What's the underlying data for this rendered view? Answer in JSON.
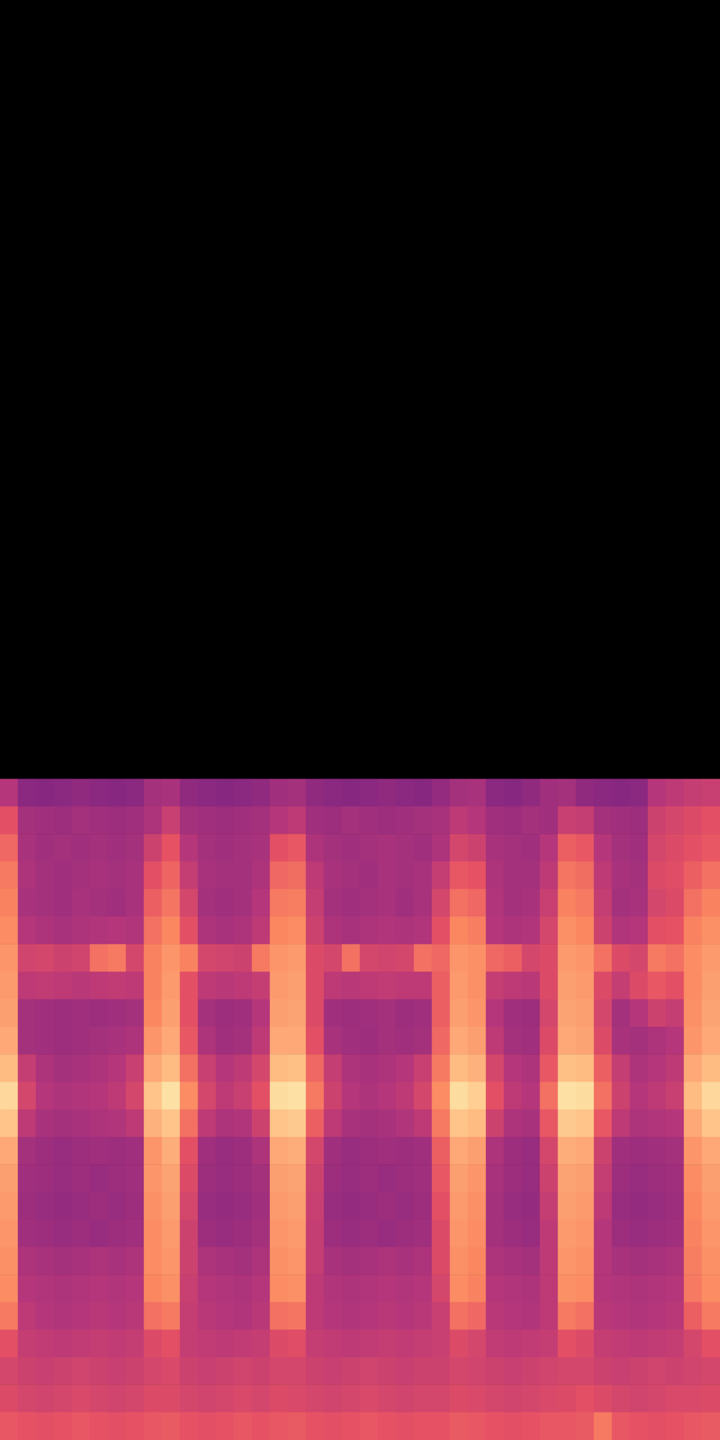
{
  "chart_data": {
    "type": "heatmap",
    "tick_labels": false,
    "zlim": [
      0,
      100
    ],
    "cells": [
      [
        50,
        40,
        39,
        40,
        41,
        40,
        39,
        40,
        46,
        47,
        41,
        40,
        39,
        40,
        41,
        45,
        46,
        41,
        40,
        39,
        40,
        41,
        40,
        39,
        42,
        46,
        47,
        40,
        39,
        41,
        45,
        46,
        41,
        40,
        39,
        40,
        50,
        52,
        54,
        55
      ],
      [
        62,
        46,
        45,
        44,
        46,
        45,
        44,
        45,
        48,
        55,
        46,
        45,
        44,
        45,
        46,
        50,
        52,
        45,
        44,
        46,
        45,
        44,
        45,
        46,
        47,
        52,
        50,
        45,
        44,
        46,
        45,
        55,
        54,
        46,
        45,
        44,
        56,
        58,
        60,
        62
      ],
      [
        68,
        47,
        45,
        46,
        45,
        46,
        45,
        46,
        56,
        63,
        50,
        46,
        45,
        46,
        47,
        62,
        64,
        48,
        46,
        45,
        46,
        47,
        46,
        45,
        48,
        58,
        56,
        47,
        46,
        45,
        50,
        66,
        64,
        50,
        46,
        45,
        58,
        60,
        62,
        64
      ],
      [
        72,
        48,
        46,
        45,
        46,
        47,
        46,
        47,
        62,
        67,
        54,
        47,
        46,
        46,
        48,
        68,
        69,
        52,
        47,
        46,
        45,
        47,
        46,
        47,
        54,
        64,
        63,
        48,
        46,
        46,
        52,
        71,
        69,
        52,
        47,
        46,
        60,
        61,
        66,
        70
      ],
      [
        74,
        47,
        46,
        45,
        47,
        46,
        45,
        47,
        66,
        71,
        58,
        46,
        45,
        46,
        50,
        72,
        73,
        54,
        46,
        45,
        46,
        47,
        45,
        47,
        58,
        70,
        68,
        49,
        46,
        47,
        55,
        74,
        72,
        54,
        46,
        47,
        58,
        60,
        70,
        74
      ],
      [
        76,
        50,
        48,
        47,
        48,
        49,
        50,
        49,
        70,
        75,
        62,
        48,
        47,
        48,
        52,
        75,
        76,
        56,
        48,
        47,
        48,
        49,
        48,
        49,
        62,
        75,
        73,
        50,
        48,
        49,
        58,
        77,
        75,
        56,
        49,
        50,
        62,
        63,
        74,
        77
      ],
      [
        78,
        57,
        58,
        56,
        57,
        70,
        72,
        58,
        74,
        78,
        74,
        58,
        57,
        56,
        72,
        78,
        79,
        60,
        58,
        70,
        58,
        57,
        58,
        70,
        68,
        78,
        77,
        68,
        66,
        58,
        60,
        79,
        78,
        70,
        60,
        58,
        72,
        70,
        76,
        79
      ],
      [
        79,
        52,
        53,
        52,
        51,
        52,
        53,
        52,
        74,
        79,
        62,
        52,
        51,
        52,
        54,
        79,
        80,
        60,
        52,
        51,
        52,
        53,
        52,
        52,
        66,
        79,
        77,
        54,
        52,
        51,
        60,
        80,
        79,
        60,
        54,
        60,
        64,
        62,
        76,
        80
      ],
      [
        80,
        46,
        45,
        44,
        45,
        44,
        45,
        46,
        75,
        80,
        62,
        46,
        44,
        45,
        50,
        80,
        81,
        60,
        45,
        44,
        45,
        46,
        44,
        45,
        66,
        80,
        78,
        50,
        45,
        44,
        58,
        81,
        80,
        58,
        46,
        50,
        56,
        54,
        77,
        81
      ],
      [
        82,
        46,
        45,
        44,
        45,
        46,
        47,
        48,
        78,
        82,
        64,
        48,
        45,
        46,
        52,
        82,
        82,
        62,
        47,
        45,
        44,
        46,
        45,
        46,
        68,
        82,
        80,
        52,
        46,
        45,
        60,
        82,
        81,
        60,
        47,
        46,
        48,
        50,
        78,
        82
      ],
      [
        86,
        54,
        48,
        46,
        47,
        48,
        50,
        55,
        82,
        86,
        70,
        55,
        50,
        52,
        58,
        86,
        87,
        68,
        54,
        48,
        47,
        48,
        50,
        55,
        72,
        86,
        84,
        58,
        50,
        48,
        64,
        87,
        86,
        66,
        54,
        48,
        50,
        52,
        82,
        86
      ],
      [
        92,
        58,
        50,
        48,
        49,
        50,
        52,
        58,
        88,
        94,
        76,
        58,
        52,
        55,
        62,
        93,
        94,
        72,
        56,
        50,
        48,
        50,
        52,
        58,
        76,
        93,
        90,
        62,
        52,
        50,
        70,
        94,
        93,
        70,
        56,
        50,
        52,
        55,
        86,
        92
      ],
      [
        88,
        52,
        47,
        46,
        47,
        48,
        49,
        52,
        84,
        88,
        70,
        52,
        48,
        49,
        56,
        88,
        89,
        66,
        52,
        47,
        46,
        47,
        49,
        52,
        72,
        88,
        86,
        56,
        48,
        47,
        64,
        89,
        88,
        64,
        52,
        48,
        49,
        50,
        82,
        88
      ],
      [
        82,
        46,
        44,
        43,
        44,
        45,
        44,
        45,
        78,
        83,
        62,
        45,
        43,
        44,
        48,
        82,
        83,
        58,
        45,
        43,
        44,
        45,
        44,
        45,
        66,
        82,
        80,
        48,
        44,
        43,
        58,
        83,
        82,
        56,
        45,
        44,
        45,
        46,
        78,
        82
      ],
      [
        80,
        45,
        44,
        43,
        44,
        43,
        44,
        45,
        78,
        81,
        60,
        44,
        43,
        44,
        46,
        80,
        81,
        56,
        44,
        43,
        44,
        43,
        44,
        45,
        64,
        80,
        78,
        47,
        44,
        43,
        56,
        81,
        80,
        54,
        44,
        43,
        44,
        45,
        76,
        80
      ],
      [
        79,
        44,
        43,
        42,
        43,
        44,
        43,
        44,
        77,
        80,
        58,
        43,
        42,
        43,
        45,
        79,
        80,
        55,
        43,
        42,
        43,
        44,
        43,
        44,
        62,
        79,
        77,
        46,
        43,
        42,
        54,
        80,
        79,
        52,
        43,
        42,
        43,
        44,
        75,
        79
      ],
      [
        78,
        45,
        44,
        43,
        44,
        43,
        44,
        45,
        76,
        79,
        56,
        44,
        43,
        44,
        46,
        78,
        79,
        54,
        44,
        43,
        44,
        43,
        44,
        45,
        60,
        78,
        76,
        46,
        44,
        43,
        52,
        79,
        78,
        50,
        44,
        43,
        44,
        45,
        74,
        78
      ],
      [
        77,
        48,
        47,
        46,
        47,
        48,
        47,
        48,
        76,
        78,
        56,
        48,
        47,
        46,
        48,
        77,
        78,
        54,
        47,
        46,
        47,
        48,
        47,
        48,
        60,
        77,
        75,
        48,
        47,
        46,
        52,
        78,
        77,
        50,
        47,
        46,
        47,
        48,
        73,
        77
      ],
      [
        76,
        50,
        49,
        48,
        49,
        50,
        49,
        50,
        75,
        77,
        55,
        50,
        49,
        48,
        50,
        76,
        77,
        52,
        49,
        48,
        49,
        50,
        49,
        50,
        58,
        76,
        74,
        50,
        49,
        48,
        52,
        77,
        76,
        50,
        49,
        48,
        49,
        50,
        72,
        76
      ],
      [
        72,
        52,
        50,
        49,
        50,
        51,
        50,
        51,
        70,
        72,
        54,
        51,
        50,
        49,
        51,
        70,
        71,
        52,
        50,
        49,
        50,
        51,
        50,
        51,
        55,
        70,
        68,
        51,
        50,
        49,
        52,
        72,
        70,
        51,
        50,
        49,
        50,
        51,
        66,
        72
      ],
      [
        62,
        54,
        53,
        52,
        53,
        54,
        53,
        54,
        60,
        62,
        54,
        53,
        52,
        53,
        54,
        60,
        61,
        54,
        53,
        52,
        53,
        54,
        53,
        54,
        55,
        60,
        58,
        53,
        52,
        53,
        54,
        62,
        60,
        54,
        53,
        52,
        53,
        54,
        58,
        62
      ],
      [
        58,
        56,
        55,
        56,
        57,
        56,
        55,
        56,
        58,
        59,
        56,
        55,
        56,
        57,
        56,
        58,
        58,
        56,
        55,
        56,
        57,
        56,
        55,
        56,
        56,
        58,
        57,
        56,
        55,
        56,
        57,
        58,
        58,
        56,
        55,
        56,
        57,
        56,
        57,
        58
      ],
      [
        60,
        58,
        57,
        58,
        59,
        58,
        57,
        58,
        60,
        60,
        58,
        57,
        58,
        59,
        58,
        60,
        59,
        58,
        57,
        58,
        59,
        58,
        57,
        58,
        58,
        60,
        59,
        58,
        57,
        58,
        59,
        60,
        62,
        60,
        58,
        57,
        58,
        59,
        59,
        60
      ],
      [
        64,
        63,
        62,
        63,
        64,
        63,
        62,
        63,
        64,
        65,
        63,
        62,
        63,
        64,
        63,
        64,
        65,
        63,
        62,
        63,
        64,
        63,
        62,
        63,
        63,
        65,
        64,
        63,
        62,
        63,
        64,
        64,
        65,
        72,
        64,
        63,
        62,
        63,
        64,
        65
      ]
    ]
  }
}
